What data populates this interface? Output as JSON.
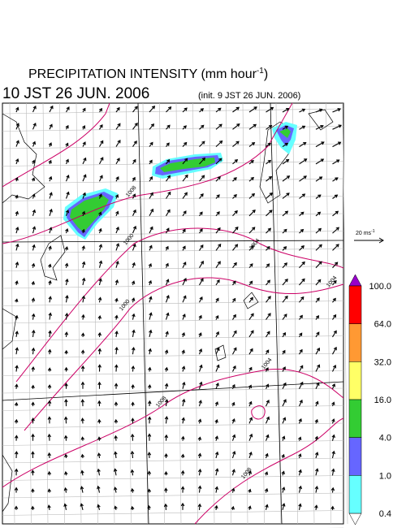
{
  "title": {
    "text": "PRECIPITATION INTENSITY (mm hour",
    "superscript": "-1",
    "suffix": ")"
  },
  "valid_time": "10 JST 26 JUN. 2006",
  "init_time": "(init. 9 JST 26 JUN. 2006)",
  "vector_scale": {
    "text": "20 ms",
    "superscript": "-1"
  },
  "colorbar": {
    "labels": [
      "100.0",
      "64.0",
      "32.0",
      "16.0",
      "4.0",
      "1.0",
      "0.4"
    ],
    "colors": [
      "#ff0000",
      "#ff9933",
      "#ffff66",
      "#33cc33",
      "#6666ff",
      "#66ffff"
    ],
    "over_color": "#9900cc",
    "under_color": "#ffffff"
  },
  "contour_labels": [
    "1008",
    "1000",
    "1004",
    "1004",
    "1000",
    "1004",
    "1008",
    "1008"
  ]
}
